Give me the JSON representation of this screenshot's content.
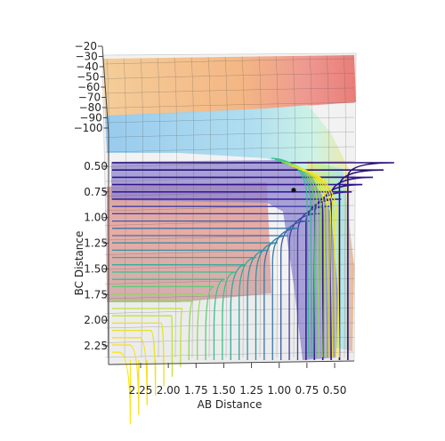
{
  "chart_data": {
    "type": "surface-contour-3d",
    "xlabel": "AB Distance",
    "ylabel": "BC Distance",
    "zlabel": "",
    "x_ticks": [
      "2.25",
      "2.00",
      "1.75",
      "1.50",
      "1.25",
      "1.00",
      "0.75",
      "0.50"
    ],
    "y_ticks": [
      "0.50",
      "0.75",
      "1.00",
      "1.25",
      "1.50",
      "1.75",
      "2.00",
      "2.25"
    ],
    "z_ticks": [
      "−20",
      "−30",
      "−40",
      "−50",
      "−60",
      "−70",
      "−80",
      "−90",
      "−100"
    ],
    "x_range": [
      0.4,
      2.4
    ],
    "y_range": [
      0.4,
      2.4
    ],
    "z_range": [
      -100,
      -20
    ],
    "marker": {
      "x": 0.95,
      "y": 0.75
    },
    "colormap": "viridis",
    "colors": {
      "surface_red": "#e8706a",
      "surface_orange": "#f4b078",
      "surface_blue": "#8fc6ec",
      "surface_cyan": "#b6f0ec",
      "surface_purple": "#8e86cf",
      "marker": "#111111"
    }
  }
}
